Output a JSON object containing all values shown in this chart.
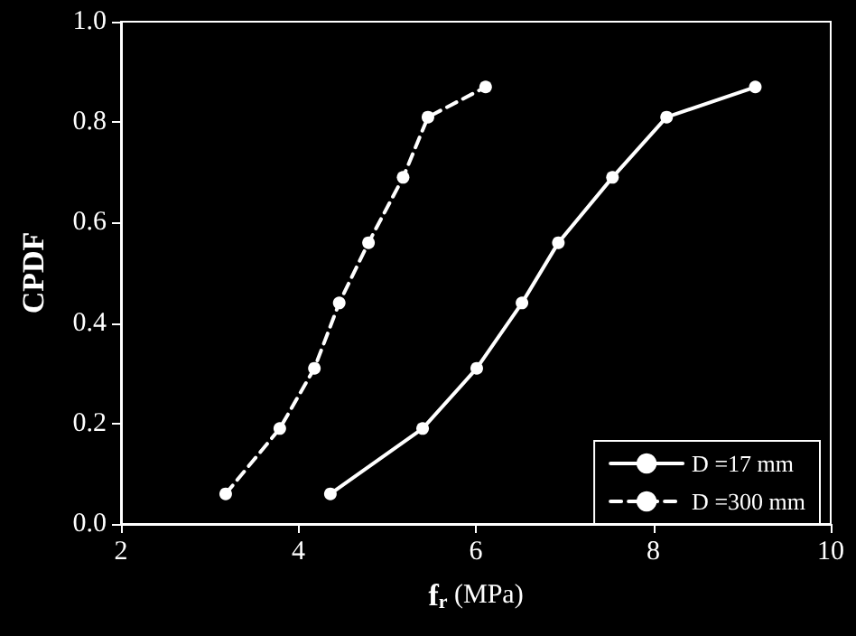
{
  "chart_data": {
    "type": "line",
    "xlabel": "f$_{r}$ (MPa)",
    "ylabel": "CPDF",
    "xlim": [
      2,
      10
    ],
    "xticks": [
      2,
      4,
      6,
      8,
      10
    ],
    "ylim": [
      0,
      1
    ],
    "yticks": [
      {
        "value": 0,
        "label": "0.0"
      },
      0.2,
      0.4,
      0.6,
      0.8,
      {
        "value": 1,
        "label": "1.0"
      }
    ],
    "grid": false,
    "legend": "bottom right",
    "marker": "circle",
    "series": [
      {
        "name": "D =17 mm",
        "color": "#ffffff",
        "line_style": "solid",
        "x": [
          4.36,
          5.4,
          6.01,
          6.52,
          6.93,
          7.54,
          8.15,
          9.15
        ],
        "values": [
          0.06,
          0.19,
          0.31,
          0.44,
          0.56,
          0.69,
          0.81,
          0.87
        ]
      },
      {
        "name": "D =300 mm",
        "color": "#ffffff",
        "line_style": "dashed",
        "x": [
          3.18,
          3.79,
          4.18,
          4.46,
          4.79,
          5.18,
          5.46,
          6.11
        ],
        "values": [
          0.06,
          0.19,
          0.31,
          0.44,
          0.56,
          0.69,
          0.81,
          0.87
        ]
      }
    ]
  }
}
